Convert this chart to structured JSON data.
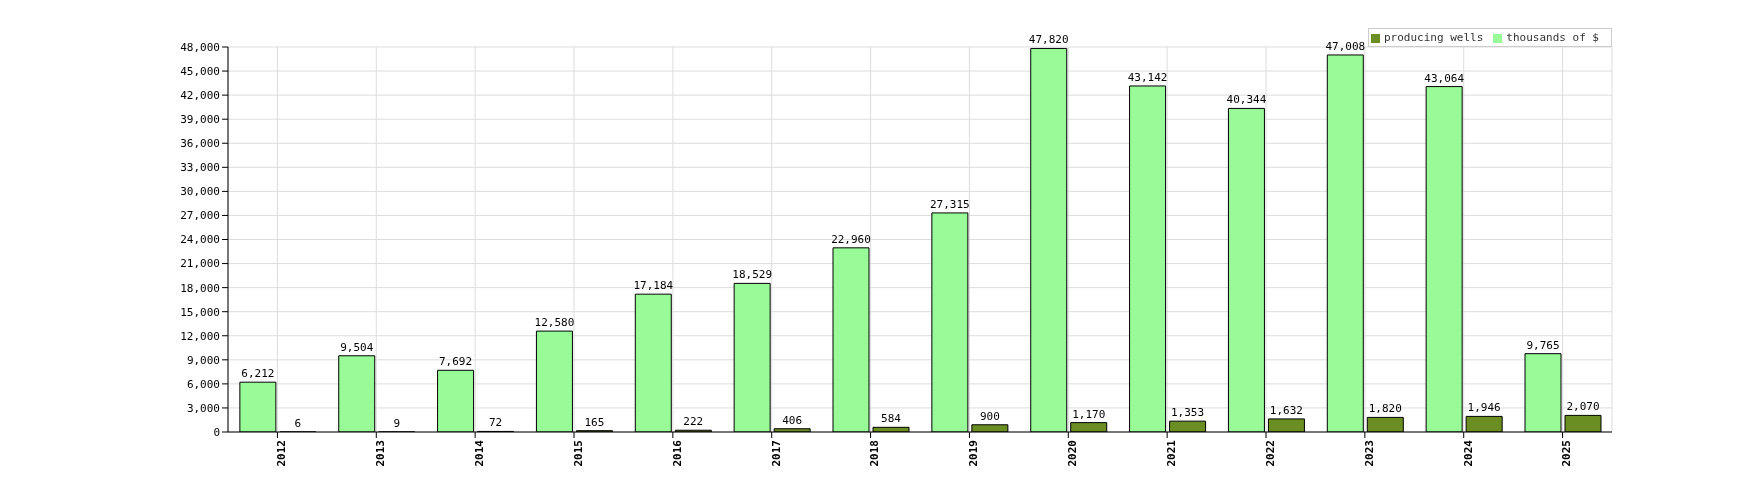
{
  "chart_data": {
    "type": "bar",
    "categories": [
      "2012",
      "2013",
      "2014",
      "2015",
      "2016",
      "2017",
      "2018",
      "2019",
      "2020",
      "2021",
      "2022",
      "2023",
      "2024",
      "2025"
    ],
    "series": [
      {
        "name": "thousands of $",
        "color": "#98fb98",
        "values": [
          6212,
          9504,
          7692,
          12580,
          17184,
          18529,
          22960,
          27315,
          47820,
          43142,
          40344,
          47008,
          43064,
          9765
        ],
        "value_labels": [
          "6,212",
          "9,504",
          "7,692",
          "12,580",
          "17,184",
          "18,529",
          "22,960",
          "27,315",
          "47,820",
          "43,142",
          "40,344",
          "47,008",
          "43,064",
          "9,765"
        ]
      },
      {
        "name": "producing wells",
        "color": "#6b8e23",
        "values": [
          6,
          9,
          72,
          165,
          222,
          406,
          584,
          900,
          1170,
          1353,
          1632,
          1820,
          1946,
          2070
        ],
        "value_labels": [
          "6",
          "9",
          "72",
          "165",
          "222",
          "406",
          "584",
          "900",
          "1,170",
          "1,353",
          "1,632",
          "1,820",
          "1,946",
          "2,070"
        ]
      }
    ],
    "ylim": [
      0,
      48000
    ],
    "yticks": [
      0,
      {
        "value": 3000,
        "label": "3,000"
      },
      {
        "value": 6000,
        "label": "6,000"
      },
      {
        "value": 9000,
        "label": "9,000"
      },
      {
        "value": 12000,
        "label": "12,000"
      },
      {
        "value": 15000,
        "label": "15,000"
      },
      {
        "value": 18000,
        "label": "18,000"
      },
      {
        "value": 21000,
        "label": "21,000"
      },
      {
        "value": 24000,
        "label": "24,000"
      },
      {
        "value": 27000,
        "label": "27,000"
      },
      {
        "value": 30000,
        "label": "30,000"
      },
      {
        "value": 33000,
        "label": "33,000"
      },
      {
        "value": 36000,
        "label": "36,000"
      },
      {
        "value": 39000,
        "label": "39,000"
      },
      {
        "value": 42000,
        "label": "42,000"
      },
      {
        "value": 45000,
        "label": "45,000"
      },
      {
        "value": 48000,
        "label": "48,000"
      }
    ],
    "grid": true,
    "legend": "top right"
  }
}
